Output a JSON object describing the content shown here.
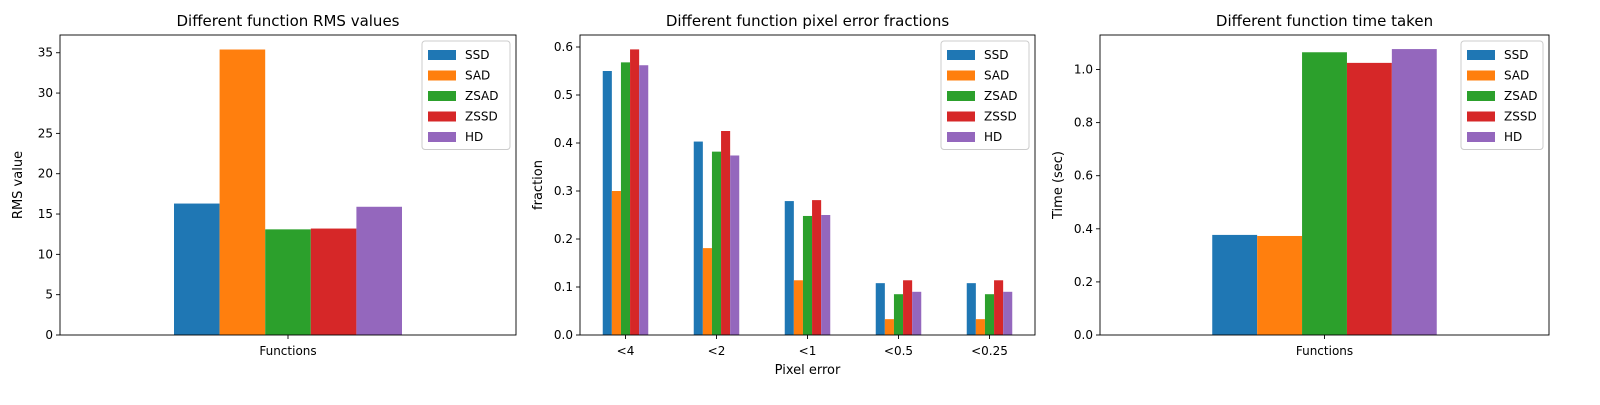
{
  "colors": [
    "#1f77b4",
    "#ff7f0e",
    "#2ca02c",
    "#d62728",
    "#9467bd"
  ],
  "chart_data": [
    {
      "type": "bar",
      "title": "Different function RMS values",
      "xlabel": "",
      "ylabel": "RMS value",
      "categories": [
        "Functions"
      ],
      "series": [
        {
          "name": "SSD",
          "values": [
            16.3
          ]
        },
        {
          "name": "SAD",
          "values": [
            35.4
          ]
        },
        {
          "name": "ZSAD",
          "values": [
            13.1
          ]
        },
        {
          "name": "ZSSD",
          "values": [
            13.2
          ]
        },
        {
          "name": "HD",
          "values": [
            15.9
          ]
        }
      ],
      "ylim": [
        0,
        37.2
      ],
      "yticks": [
        0,
        5,
        10,
        15,
        20,
        25,
        30,
        35
      ],
      "legend": "top-right",
      "grid": false
    },
    {
      "type": "bar",
      "title": "Different function pixel error fractions",
      "xlabel": "Pixel error",
      "ylabel": "fraction",
      "categories": [
        "<4",
        "<2",
        "<1",
        "<0.5",
        "<0.25"
      ],
      "series": [
        {
          "name": "SSD",
          "values": [
            0.55,
            0.403,
            0.279,
            0.108,
            0.108
          ]
        },
        {
          "name": "SAD",
          "values": [
            0.3,
            0.181,
            0.114,
            0.033,
            0.033
          ]
        },
        {
          "name": "ZSAD",
          "values": [
            0.568,
            0.382,
            0.248,
            0.085,
            0.085
          ]
        },
        {
          "name": "ZSSD",
          "values": [
            0.595,
            0.425,
            0.281,
            0.114,
            0.114
          ]
        },
        {
          "name": "HD",
          "values": [
            0.562,
            0.374,
            0.25,
            0.09,
            0.09
          ]
        }
      ],
      "ylim": [
        0,
        0.625
      ],
      "yticks": [
        0.0,
        0.1,
        0.2,
        0.3,
        0.4,
        0.5,
        0.6
      ],
      "legend": "top-right",
      "grid": false
    },
    {
      "type": "bar",
      "title": "Different function time taken",
      "xlabel": "",
      "ylabel": "Time (sec)",
      "categories": [
        "Functions"
      ],
      "series": [
        {
          "name": "SSD",
          "values": [
            0.377
          ]
        },
        {
          "name": "SAD",
          "values": [
            0.373
          ]
        },
        {
          "name": "ZSAD",
          "values": [
            1.065
          ]
        },
        {
          "name": "ZSSD",
          "values": [
            1.025
          ]
        },
        {
          "name": "HD",
          "values": [
            1.077
          ]
        }
      ],
      "ylim": [
        0,
        1.13
      ],
      "yticks": [
        0.0,
        0.2,
        0.4,
        0.6,
        0.8,
        1.0
      ],
      "legend": "top-right",
      "grid": false
    }
  ]
}
